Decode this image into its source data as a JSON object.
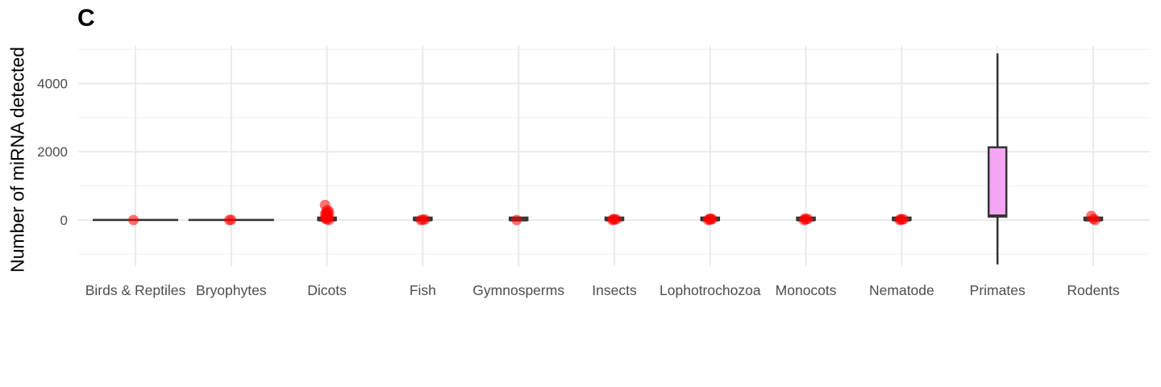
{
  "chart_data": {
    "type": "box",
    "panel_label": "C",
    "title": "",
    "xlabel": "",
    "ylabel": "Number of miRNA detected",
    "ylim": [
      -1350,
      5100
    ],
    "yticks": [
      0,
      2000,
      4000
    ],
    "grid": true,
    "categories": [
      "Birds & Reptiles",
      "Bryophytes",
      "Dicots",
      "Fish",
      "Gymnosperms",
      "Insects",
      "Lophotrochozoa",
      "Monocots",
      "Nematode",
      "Primates",
      "Rodents"
    ],
    "boxes": [
      {
        "category": "Birds & Reptiles",
        "min": 0,
        "q1": 0,
        "median": 0,
        "q3": 0,
        "max": 0,
        "fill": "#ffffff"
      },
      {
        "category": "Bryophytes",
        "min": 0,
        "q1": 0,
        "median": 0,
        "q3": 0,
        "max": 0,
        "fill": "#ffffff"
      },
      {
        "category": "Dicots",
        "min": 0,
        "q1": 0,
        "median": 0,
        "q3": 60,
        "max": 80,
        "fill": "#ffffff"
      },
      {
        "category": "Fish",
        "min": 0,
        "q1": 0,
        "median": 0,
        "q3": 20,
        "max": 30,
        "fill": "#ffffff"
      },
      {
        "category": "Gymnosperms",
        "min": 0,
        "q1": 0,
        "median": 0,
        "q3": 20,
        "max": 30,
        "fill": "#ffffff"
      },
      {
        "category": "Insects",
        "min": 0,
        "q1": 0,
        "median": 0,
        "q3": 25,
        "max": 40,
        "fill": "#ffffff"
      },
      {
        "category": "Lophotrochozoa",
        "min": 0,
        "q1": 0,
        "median": 0,
        "q3": 35,
        "max": 50,
        "fill": "#ffffff"
      },
      {
        "category": "Monocots",
        "min": 0,
        "q1": 0,
        "median": 0,
        "q3": 35,
        "max": 50,
        "fill": "#ffffff"
      },
      {
        "category": "Nematode",
        "min": 0,
        "q1": 0,
        "median": 0,
        "q3": 35,
        "max": 50,
        "fill": "#ffffff"
      },
      {
        "category": "Primates",
        "min": -1300,
        "q1": 100,
        "median": 120,
        "q3": 2130,
        "max": 4880,
        "fill": "#f4a6f4"
      },
      {
        "category": "Rodents",
        "min": 0,
        "q1": 0,
        "median": 0,
        "q3": 25,
        "max": 40,
        "fill": "#ffffff"
      }
    ],
    "points": {
      "color": "#ff0000",
      "Birds & Reptiles": [
        0
      ],
      "Bryophytes": [
        0,
        5
      ],
      "Dicots": [
        440,
        290,
        250,
        220,
        200,
        170,
        140,
        110,
        80,
        60,
        40,
        20,
        0
      ],
      "Fish": [
        0,
        8,
        15
      ],
      "Gymnosperms": [
        0
      ],
      "Insects": [
        0,
        10,
        20,
        30
      ],
      "Lophotrochozoa": [
        0,
        10,
        20,
        30,
        40
      ],
      "Monocots": [
        0,
        15,
        30,
        45
      ],
      "Nematode": [
        0,
        10,
        20,
        30
      ],
      "Primates": [],
      "Rodents": [
        120,
        30,
        0
      ]
    },
    "colors": {
      "box_outline": "#333333",
      "grid_major": "#ebebeb",
      "grid_minor": "#f3f3f3",
      "axis_text": "#4d4d4d"
    }
  }
}
